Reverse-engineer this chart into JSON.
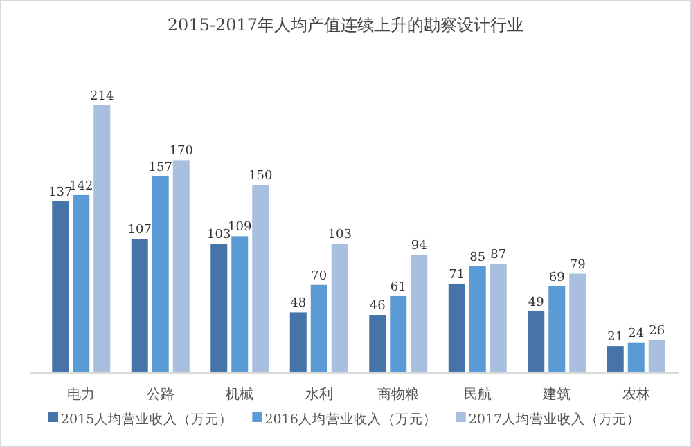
{
  "chart_data": {
    "type": "bar",
    "title": "2015-2017年人均产值连续上升的勘察设计行业",
    "categories": [
      "电力",
      "公路",
      "机械",
      "水利",
      "商物粮",
      "民航",
      "建筑",
      "农林"
    ],
    "series": [
      {
        "name": "2015人均营业收入（万元）",
        "color": "#4674a8",
        "values": [
          137,
          107,
          103,
          48,
          46,
          71,
          49,
          21
        ]
      },
      {
        "name": "2016人均营业收入（万元）",
        "color": "#5b9bd5",
        "values": [
          142,
          157,
          109,
          70,
          61,
          85,
          69,
          24
        ]
      },
      {
        "name": "2017人均营业收入（万元）",
        "color": "#a9bfe0",
        "values": [
          214,
          170,
          150,
          103,
          94,
          87,
          79,
          26
        ]
      }
    ],
    "data_labels": true,
    "legend": "bottom"
  }
}
